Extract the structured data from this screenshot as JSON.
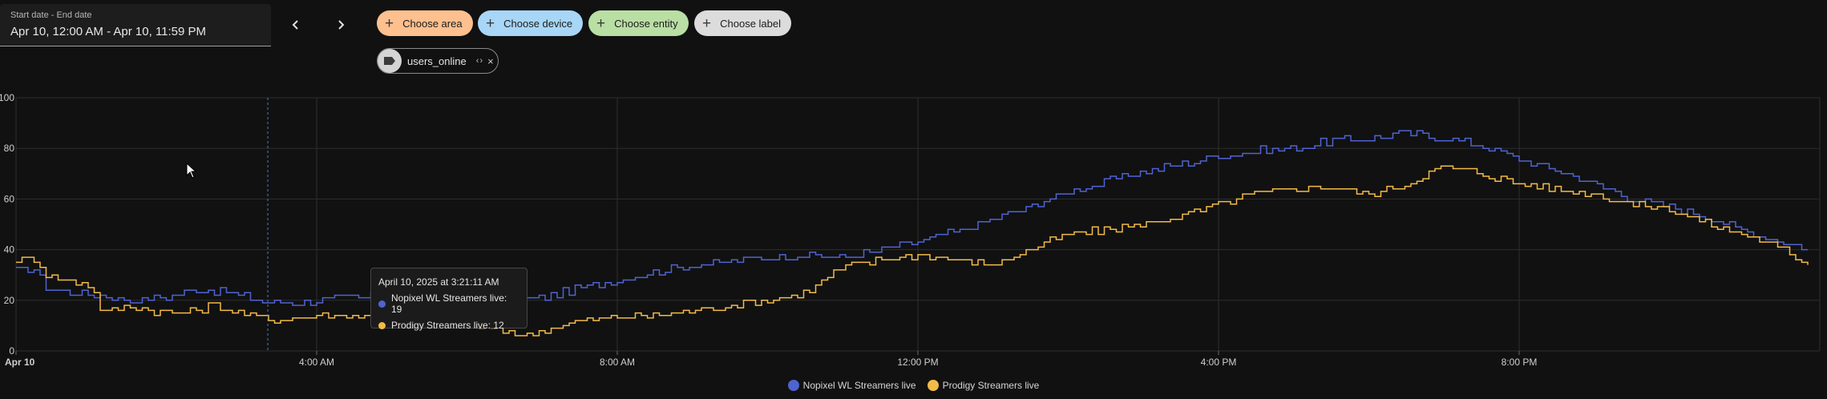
{
  "date_range": {
    "label": "Start date - End date",
    "value": "Apr 10, 12:00 AM - Apr 10, 11:59 PM"
  },
  "nav": {
    "prev_icon": "chevron-left-icon",
    "next_icon": "chevron-right-icon"
  },
  "chips": [
    {
      "label": "Choose area",
      "color": "#fdc08e",
      "name": "choose-area-button"
    },
    {
      "label": "Choose device",
      "color": "#a7d6f7",
      "name": "choose-device-button"
    },
    {
      "label": "Choose entity",
      "color": "#b9dfa4",
      "name": "choose-entity-button"
    },
    {
      "label": "Choose label",
      "color": "#dcdcdc",
      "name": "choose-label-button"
    }
  ],
  "entity": {
    "label": "users_online",
    "expand": "‹ ›",
    "remove": "×"
  },
  "tooltip": {
    "title": "April 10, 2025 at 3:21:11 AM",
    "rows": [
      {
        "text": "Nopixel WL Streamers live: 19",
        "color": "#4f63d2"
      },
      {
        "text": "Prodigy Streamers live: 12",
        "color": "#f2bb48"
      }
    ]
  },
  "chart_data": {
    "type": "line",
    "ylim": [
      0,
      100
    ],
    "y_ticks": [
      0,
      20,
      40,
      60,
      80,
      100
    ],
    "x_hours_range": [
      0,
      24
    ],
    "x_ticks": [
      {
        "hour": 0,
        "label": "Apr 10"
      },
      {
        "hour": 4,
        "label": "4:00 AM"
      },
      {
        "hour": 8,
        "label": "8:00 AM"
      },
      {
        "hour": 12,
        "label": "12:00 PM"
      },
      {
        "hour": 16,
        "label": "4:00 PM"
      },
      {
        "hour": 20,
        "label": "8:00 PM"
      }
    ],
    "hover_hour": 3.35,
    "series": [
      {
        "name": "Nopixel WL Streamers live",
        "color": "#4f63d2",
        "points": [
          [
            0,
            32
          ],
          [
            0.3,
            32
          ],
          [
            0.35,
            25
          ],
          [
            0.7,
            23
          ],
          [
            1,
            22
          ],
          [
            1.5,
            20
          ],
          [
            2,
            21
          ],
          [
            2.3,
            24
          ],
          [
            2.6,
            24
          ],
          [
            3,
            22
          ],
          [
            3.35,
            19
          ],
          [
            3.8,
            19
          ],
          [
            4,
            20
          ],
          [
            4.5,
            21
          ],
          [
            5,
            22
          ],
          [
            5.5,
            22
          ],
          [
            6,
            21
          ],
          [
            6.5,
            20
          ],
          [
            7,
            21
          ],
          [
            7.5,
            25
          ],
          [
            8,
            28
          ],
          [
            8.5,
            31
          ],
          [
            9,
            34
          ],
          [
            9.5,
            35
          ],
          [
            10,
            37
          ],
          [
            10.5,
            38
          ],
          [
            11,
            37
          ],
          [
            11.5,
            40
          ],
          [
            12,
            43
          ],
          [
            12.5,
            47
          ],
          [
            13,
            52
          ],
          [
            13.5,
            57
          ],
          [
            14,
            63
          ],
          [
            14.5,
            67
          ],
          [
            15,
            71
          ],
          [
            15.5,
            74
          ],
          [
            16,
            77
          ],
          [
            16.5,
            79
          ],
          [
            17,
            80
          ],
          [
            17.5,
            83
          ],
          [
            18,
            84
          ],
          [
            18.5,
            86
          ],
          [
            19,
            84
          ],
          [
            19.5,
            81
          ],
          [
            20,
            76
          ],
          [
            20.5,
            71
          ],
          [
            21,
            66
          ],
          [
            21.5,
            60
          ],
          [
            22,
            57
          ],
          [
            22.5,
            53
          ],
          [
            23,
            47
          ],
          [
            23.5,
            43
          ],
          [
            23.85,
            40
          ]
        ]
      },
      {
        "name": "Prodigy Streamers live",
        "color": "#f2bb48",
        "points": [
          [
            0,
            36
          ],
          [
            0.3,
            36
          ],
          [
            0.35,
            30
          ],
          [
            0.7,
            28
          ],
          [
            1,
            26
          ],
          [
            1.15,
            15
          ],
          [
            1.5,
            18
          ],
          [
            2,
            15
          ],
          [
            2.3,
            15
          ],
          [
            2.6,
            18
          ],
          [
            3,
            15
          ],
          [
            3.35,
            12
          ],
          [
            3.8,
            13
          ],
          [
            4,
            14
          ],
          [
            4.5,
            14
          ],
          [
            5,
            14
          ],
          [
            5.5,
            12
          ],
          [
            6,
            10
          ],
          [
            6.5,
            8
          ],
          [
            6.8,
            6
          ],
          [
            7,
            8
          ],
          [
            7.5,
            12
          ],
          [
            8,
            13
          ],
          [
            8.5,
            14
          ],
          [
            9,
            16
          ],
          [
            9.5,
            18
          ],
          [
            10,
            20
          ],
          [
            10.5,
            23
          ],
          [
            11,
            33
          ],
          [
            11.5,
            36
          ],
          [
            12,
            38
          ],
          [
            12.5,
            36
          ],
          [
            13,
            34
          ],
          [
            13.5,
            40
          ],
          [
            14,
            46
          ],
          [
            14.5,
            48
          ],
          [
            15,
            50
          ],
          [
            15.5,
            53
          ],
          [
            16,
            58
          ],
          [
            16.5,
            62
          ],
          [
            17,
            64
          ],
          [
            17.5,
            65
          ],
          [
            18,
            62
          ],
          [
            18.5,
            66
          ],
          [
            19,
            73
          ],
          [
            19.5,
            70
          ],
          [
            20,
            66
          ],
          [
            20.5,
            64
          ],
          [
            21,
            62
          ],
          [
            21.5,
            58
          ],
          [
            22,
            56
          ],
          [
            22.5,
            50
          ],
          [
            23,
            46
          ],
          [
            23.5,
            40
          ],
          [
            23.85,
            34
          ]
        ]
      }
    ]
  }
}
